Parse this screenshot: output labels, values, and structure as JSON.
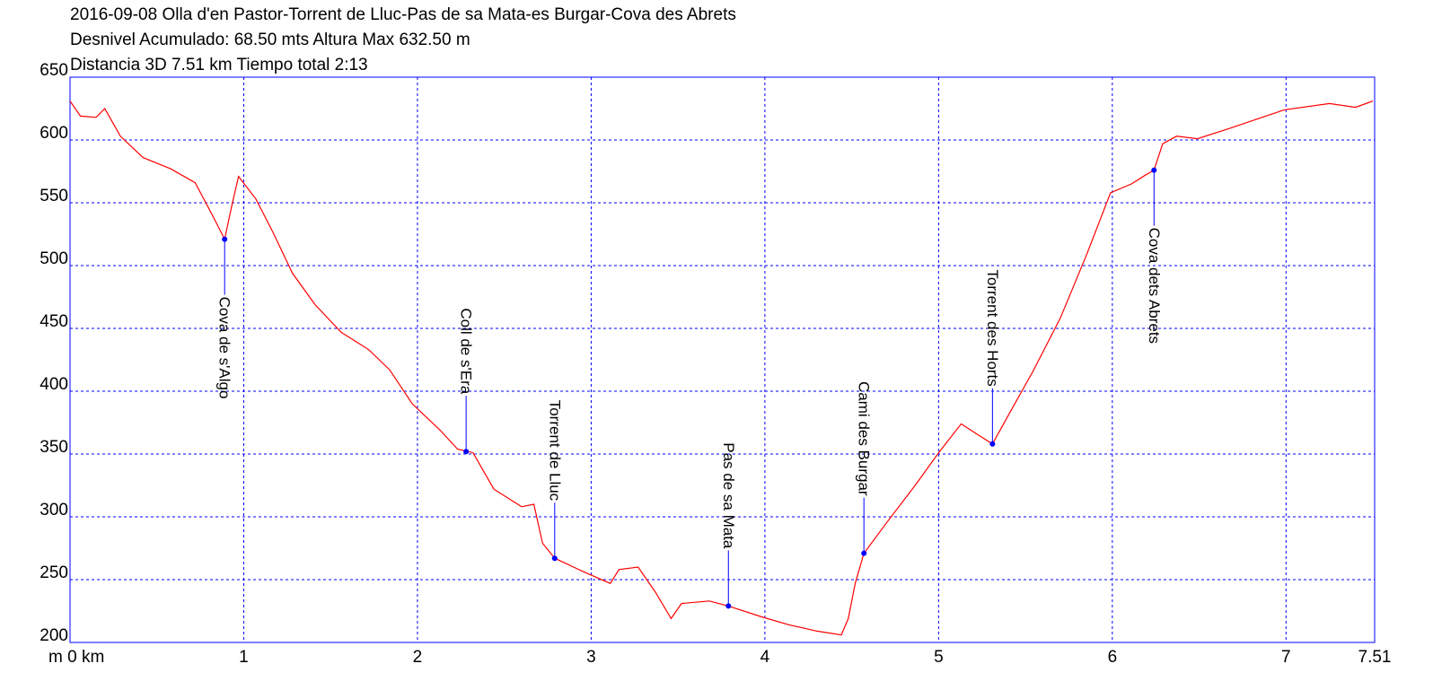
{
  "chart_data": {
    "type": "line",
    "title": "2016-09-08 Olla d'en Pastor-Torrent de Lluc-Pas de sa Mata-es Burgar-Cova des Abrets",
    "subtitle": "Desnivel Acumulado: 68.50 mts  Altura Max 632.50 m",
    "subtitle2": "Distancia 3D 7.51 km  Tiempo total 2:13",
    "x": [
      0,
      0.06,
      0.15,
      0.2,
      0.29,
      0.42,
      0.58,
      0.72,
      0.82,
      0.89,
      0.93,
      0.97,
      1.07,
      1.17,
      1.28,
      1.41,
      1.56,
      1.72,
      1.84,
      1.97,
      2.13,
      2.23,
      2.32,
      2.44,
      2.6,
      2.67,
      2.72,
      2.79,
      2.96,
      3.11,
      3.16,
      3.27,
      3.37,
      3.46,
      3.52,
      3.68,
      3.79,
      3.99,
      4.14,
      4.3,
      4.44,
      4.48,
      4.52,
      4.57,
      4.71,
      4.87,
      5.0,
      5.13,
      5.23,
      5.31,
      5.41,
      5.54,
      5.7,
      5.85,
      5.99,
      6.11,
      6.19,
      6.24,
      6.29,
      6.37,
      6.49,
      6.67,
      6.99,
      7.25,
      7.4,
      7.5
    ],
    "series": [
      {
        "color": "#ff0000",
        "values": [
          631,
          619,
          618,
          625,
          603,
          586,
          577,
          566,
          540,
          521,
          547,
          571,
          553,
          526,
          494,
          469,
          447,
          433,
          417,
          390,
          369,
          354,
          351,
          322,
          308,
          310,
          279,
          267,
          256,
          247,
          258,
          260,
          240,
          219,
          231,
          233,
          229,
          220,
          214,
          209,
          206,
          219,
          247,
          271,
          297,
          326,
          351,
          374,
          365,
          358,
          383,
          415,
          458,
          508,
          558,
          565,
          572,
          576,
          597,
          603,
          601,
          609,
          624,
          629,
          626,
          631
        ]
      }
    ],
    "annotations": [
      {
        "text": "Cova de s'Algo",
        "x": 0.89,
        "y": 521
      },
      {
        "text": "Coll de s'Era",
        "x": 2.28,
        "y": 352
      },
      {
        "text": "Torrent de Lluc",
        "x": 2.79,
        "y": 267
      },
      {
        "text": "Pas de sa Mata",
        "x": 3.79,
        "y": 229
      },
      {
        "text": "Cami des Burgar",
        "x": 4.57,
        "y": 271
      },
      {
        "text": "Torrent des Horts",
        "x": 5.31,
        "y": 358
      },
      {
        "text": "Cova dets Abrets",
        "x": 6.24,
        "y": 576
      }
    ],
    "annotation_color": "#0000ff",
    "xlim": [
      0,
      7.51
    ],
    "ylim": [
      200,
      650
    ],
    "xticks": [
      {
        "value": 0,
        "label": "m 0 km"
      },
      1,
      2,
      3,
      4,
      5,
      6,
      7,
      7.51
    ],
    "yticks": [
      200,
      250,
      300,
      350,
      400,
      450,
      500,
      550,
      600,
      650
    ],
    "grid": true,
    "frame_color": "#0000ff"
  }
}
